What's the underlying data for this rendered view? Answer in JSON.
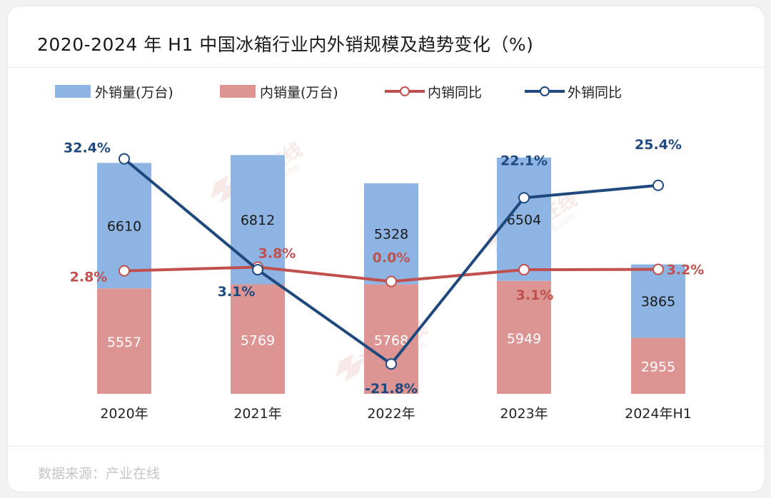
{
  "title": "2020-2024 年 H1 中国冰箱行业内外销规模及趋势变化（%)",
  "source": "数据来源：产业在线",
  "watermark": {
    "name": "产业在线",
    "url": "ChinaIOL.com"
  },
  "colors": {
    "export_bar": "#8eb4e3",
    "domestic_bar": "#dc9593",
    "domestic_line": "#c0504d",
    "export_line": "#1f497d"
  },
  "legend": [
    {
      "label": "外销量(万台)",
      "kind": "bar",
      "color": "#8eb4e3"
    },
    {
      "label": "内销量(万台)",
      "kind": "bar",
      "color": "#dc9593"
    },
    {
      "label": "内销同比",
      "kind": "line",
      "color": "#c0504d"
    },
    {
      "label": "外销同比",
      "kind": "line",
      "color": "#1f497d"
    }
  ],
  "chart_data": {
    "type": "bar",
    "stacked": true,
    "categories": [
      "2020年",
      "2021年",
      "2022年",
      "2023年",
      "2024年H1"
    ],
    "series": [
      {
        "name": "内销量(万台)",
        "type": "bar",
        "values": [
          5557,
          5769,
          5768,
          5949,
          2955
        ]
      },
      {
        "name": "外销量(万台)",
        "type": "bar",
        "values": [
          6610,
          6812,
          5328,
          6504,
          3865
        ]
      },
      {
        "name": "内销同比",
        "type": "line",
        "values": [
          2.8,
          3.8,
          0.0,
          3.1,
          3.2
        ],
        "labels": [
          "2.8%",
          "3.8%",
          "0.0%",
          "3.1%",
          "3.2%"
        ]
      },
      {
        "name": "外销同比",
        "type": "line",
        "values": [
          32.4,
          3.1,
          -21.8,
          22.1,
          25.4
        ],
        "labels": [
          "32.4%",
          "3.1%",
          "-21.8%",
          "22.1%",
          "25.4%"
        ]
      }
    ],
    "title": "2020-2024 年 H1 中国冰箱行业内外销规模及趋势变化（%)",
    "xlabel": "",
    "ylabel": ""
  }
}
